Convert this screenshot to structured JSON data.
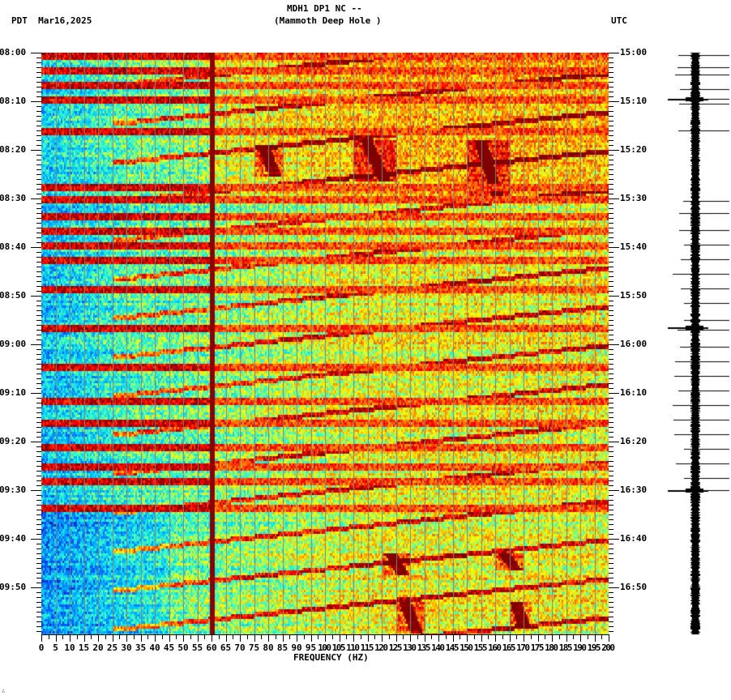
{
  "header": {
    "title_line1": "MDH1 DP1 NC --",
    "title_line2": "(Mammoth Deep Hole )",
    "left_tz": "PDT",
    "date": "Mar16,2025",
    "left_label": "PDT  Mar16,2025",
    "right_tz": "UTC"
  },
  "footer": {
    "glyph": "∴"
  },
  "chart_data": {
    "type": "heatmap",
    "title": "MDH1 DP1 NC -- (Mammoth Deep Hole )",
    "subtitle": "PDT Mar16,2025 / UTC",
    "xlabel": "FREQUENCY (HZ)",
    "ylabel_left": "PDT",
    "ylabel_right": "UTC",
    "xlim": [
      0,
      200
    ],
    "x_ticks": [
      0,
      5,
      10,
      15,
      20,
      25,
      30,
      35,
      40,
      45,
      50,
      55,
      60,
      65,
      70,
      75,
      80,
      85,
      90,
      95,
      100,
      105,
      110,
      115,
      120,
      125,
      130,
      135,
      140,
      145,
      150,
      155,
      160,
      165,
      170,
      175,
      180,
      185,
      190,
      195,
      200
    ],
    "y_ticks_left": [
      "08:00",
      "08:10",
      "08:20",
      "08:30",
      "08:40",
      "08:50",
      "09:00",
      "09:10",
      "09:20",
      "09:30",
      "09:40",
      "09:50"
    ],
    "y_ticks_right": [
      "15:00",
      "15:10",
      "15:20",
      "15:30",
      "15:40",
      "15:50",
      "16:00",
      "16:10",
      "16:20",
      "16:30",
      "16:40",
      "16:50"
    ],
    "time_range_minutes": 120,
    "colormap": [
      "#00008f",
      "#0050ff",
      "#00c8ff",
      "#40ffbf",
      "#ffff00",
      "#ff8000",
      "#ff0000",
      "#800000"
    ],
    "gridline_color": "#808080",
    "persistent_line_hz": 60,
    "horizontal_broadband_bands_min": [
      0.5,
      3.5,
      6.5,
      9.5,
      16.0,
      27.5,
      30.0,
      33.5,
      36.5,
      39.5,
      42.5,
      48.5,
      56.5,
      64.5,
      71.5,
      76.0,
      81.0,
      85.0,
      88.0,
      93.5
    ],
    "event_blobs": [
      {
        "hz_from": 110,
        "hz_to": 125,
        "min_from": 18,
        "min_to": 26
      },
      {
        "hz_from": 150,
        "hz_to": 165,
        "min_from": 18,
        "min_to": 29
      },
      {
        "hz_from": 75,
        "hz_to": 85,
        "min_from": 19,
        "min_to": 25
      },
      {
        "hz_from": 120,
        "hz_to": 130,
        "min_from": 103,
        "min_to": 107
      },
      {
        "hz_from": 160,
        "hz_to": 170,
        "min_from": 103,
        "min_to": 106
      },
      {
        "hz_from": 125,
        "hz_to": 135,
        "min_from": 113,
        "min_to": 119
      },
      {
        "hz_from": 165,
        "hz_to": 172,
        "min_from": 113,
        "min_to": 118
      }
    ],
    "seismogram": {
      "spike_minutes": [
        0.5,
        3,
        4.5,
        7.5,
        9.5,
        10.5,
        16,
        30.5,
        33,
        36.5,
        39.5,
        42.5,
        45.5,
        48.5,
        51.5,
        55,
        57,
        60.5,
        63.5,
        66.5,
        69.5,
        72.5,
        75.5,
        78.5,
        81.5,
        84.5,
        87.5,
        90
      ],
      "large_events_minutes": [
        9.5,
        56.5,
        90
      ]
    }
  }
}
